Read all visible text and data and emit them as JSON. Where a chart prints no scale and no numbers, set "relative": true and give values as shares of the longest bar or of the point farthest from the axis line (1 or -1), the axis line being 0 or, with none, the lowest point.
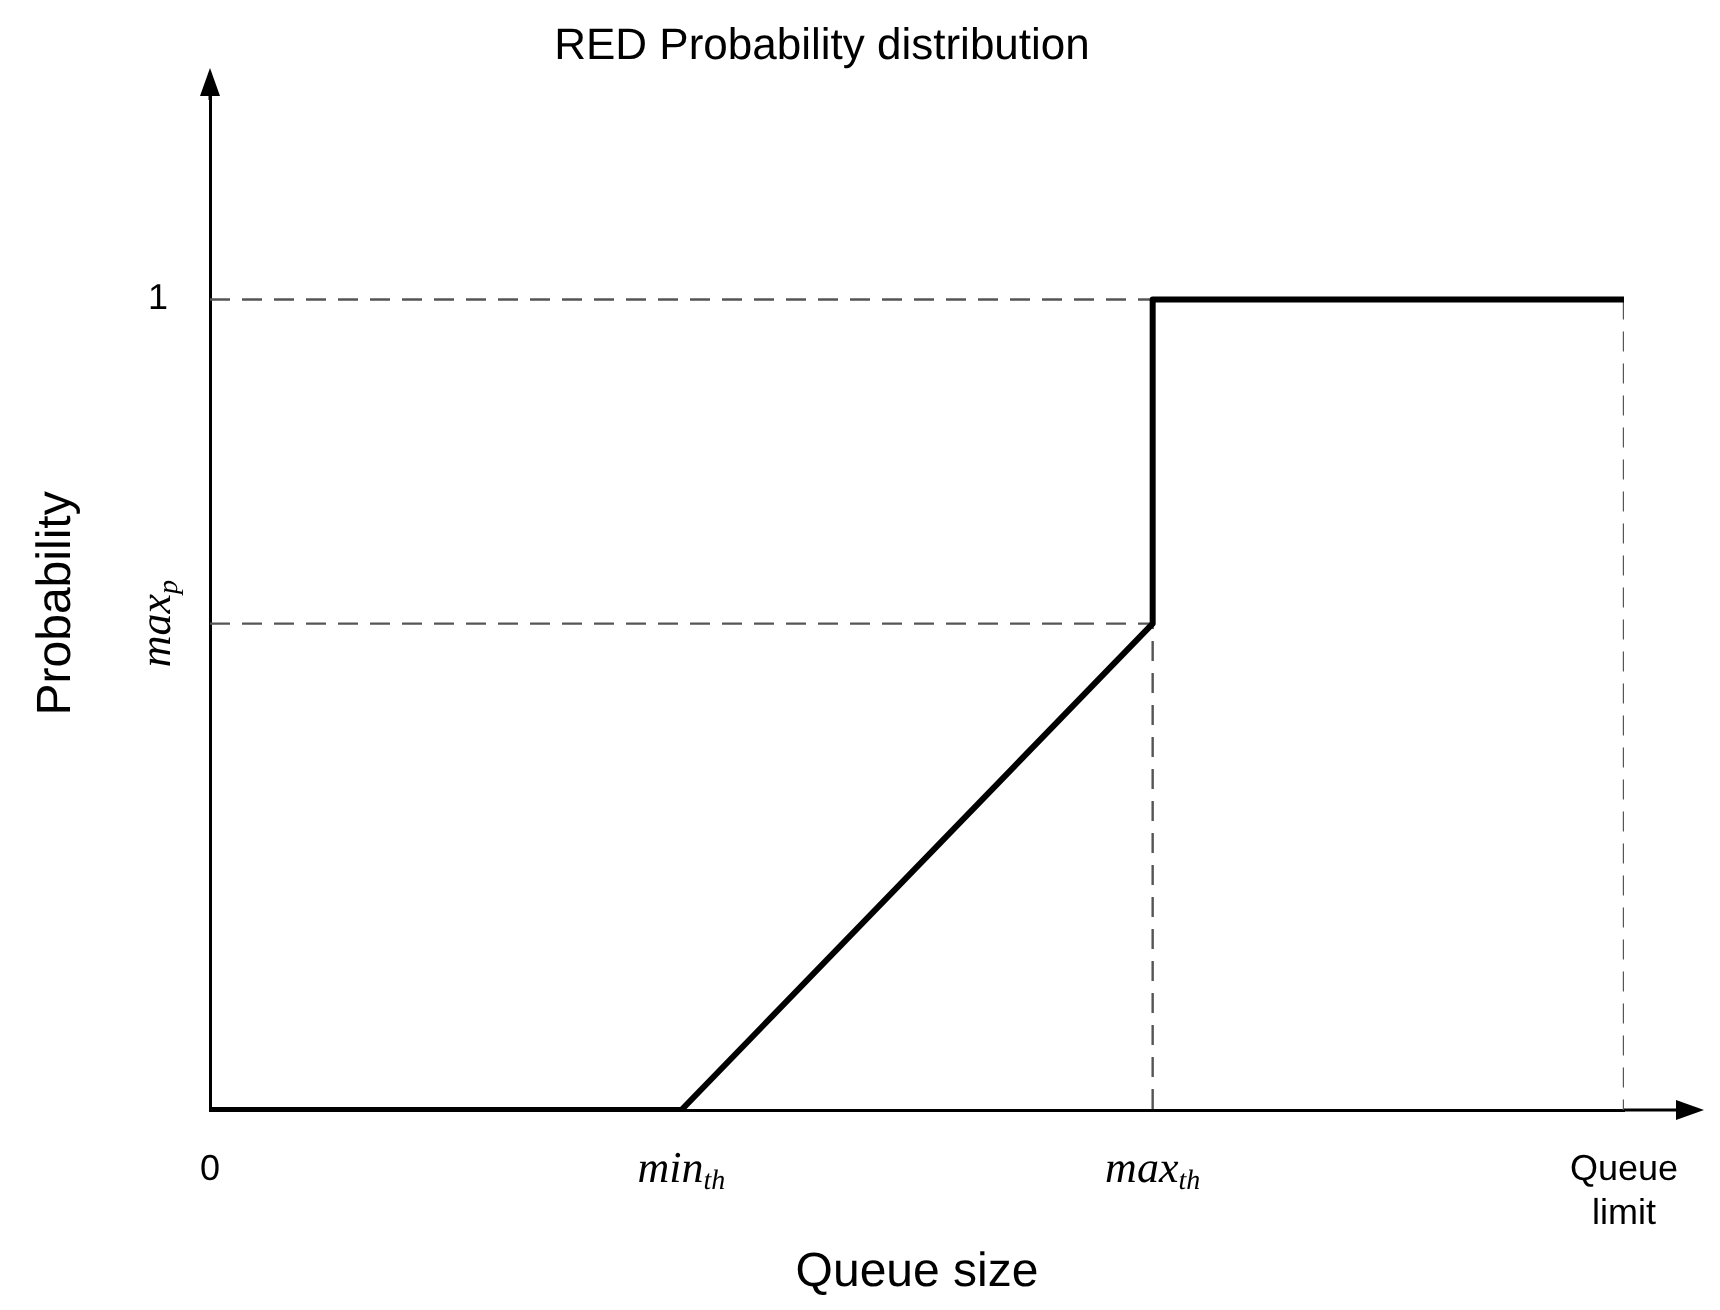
{
  "chart_data": {
    "type": "line",
    "title": "RED Probability distribution",
    "xlabel": "Queue size",
    "ylabel": "Probability",
    "categories": [
      "0",
      "min$_{th}$",
      "max$_{th}$",
      "Queue limit"
    ],
    "relative": true,
    "series": [
      {
        "color": "#000000",
        "line_style": "solid",
        "x": [
          "0",
          "min$_{th}$",
          "max$_{th}$",
          "max$_{th}$",
          "Queue limit"
        ],
        "values": [
          0,
          0,
          0.6,
          1,
          1
        ]
      },
      {
        "name": "max$_{p}$",
        "color": "#555555",
        "line_style": "dashed",
        "x": [
          "0",
          "max$_{th}$",
          "max$_{th}$"
        ],
        "values": [
          0.6,
          0.6,
          0
        ]
      },
      {
        "name": "1",
        "color": "#555555",
        "line_style": "dashed",
        "x": [
          "0",
          "max$_{th}$"
        ],
        "values": [
          1,
          1
        ]
      },
      {
        "color": "#555555",
        "line_style": "dashed",
        "x": [
          "Queue limit",
          "Queue limit"
        ],
        "values": [
          1,
          0
        ]
      }
    ],
    "grid": false,
    "legend": false,
    "marker": "none"
  }
}
